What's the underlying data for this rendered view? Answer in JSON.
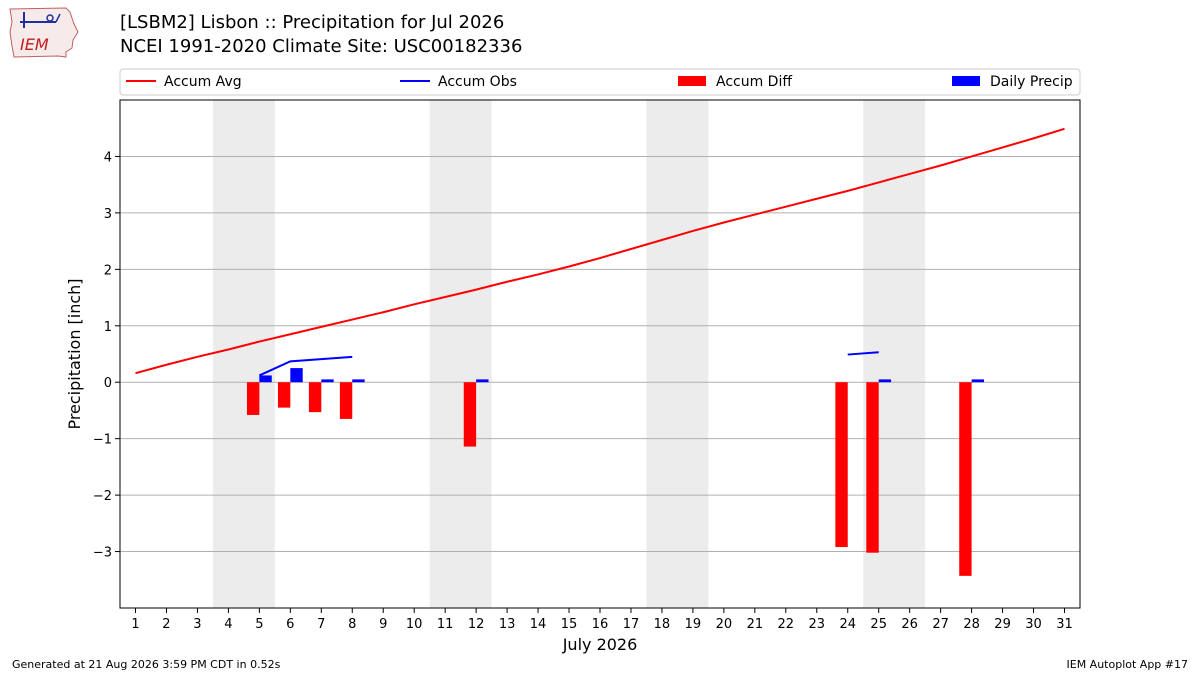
{
  "title": "[LSBM2] Lisbon :: Precipitation for Jul 2026",
  "subtitle": "NCEI 1991-2020 Climate Site: USC00182336",
  "logo_text": "IEM",
  "footer_left": "Generated at 21 Aug 2026 3:59 PM CDT in 0.52s",
  "footer_right": "IEM Autoplot App #17",
  "chart_data": {
    "type": "bar",
    "xlabel": "July 2026",
    "ylabel": "Precipitation [inch]",
    "x_ticks": [
      "1",
      "2",
      "3",
      "4",
      "5",
      "6",
      "7",
      "8",
      "9",
      "10",
      "11",
      "12",
      "13",
      "14",
      "15",
      "16",
      "17",
      "18",
      "19",
      "20",
      "21",
      "22",
      "23",
      "24",
      "25",
      "26",
      "27",
      "28",
      "29",
      "30",
      "31"
    ],
    "xlim": [
      0.5,
      31.5
    ],
    "ylim": [
      -4.0,
      5.0
    ],
    "y_ticks": [
      -3,
      -2,
      -1,
      0,
      1,
      2,
      3,
      4
    ],
    "y_tick_labels": [
      "−3",
      "−2",
      "−1",
      "0",
      "1",
      "2",
      "3",
      "4"
    ],
    "grid": "horizontal",
    "weekend_bands": [
      [
        3.5,
        5.5
      ],
      [
        10.5,
        12.5
      ],
      [
        17.5,
        19.5
      ],
      [
        24.5,
        26.5
      ]
    ],
    "legend_position": "top",
    "series": [
      {
        "name": "Accum Avg",
        "kind": "line",
        "color": "#ff0000",
        "x": [
          1,
          2,
          3,
          4,
          5,
          6,
          7,
          8,
          9,
          10,
          11,
          12,
          13,
          14,
          15,
          16,
          17,
          18,
          19,
          20,
          21,
          22,
          23,
          24,
          25,
          26,
          27,
          28,
          29,
          30,
          31
        ],
        "values": [
          0.16,
          0.31,
          0.45,
          0.58,
          0.72,
          0.85,
          0.98,
          1.11,
          1.24,
          1.38,
          1.51,
          1.64,
          1.78,
          1.91,
          2.05,
          2.2,
          2.36,
          2.52,
          2.68,
          2.83,
          2.97,
          3.11,
          3.25,
          3.39,
          3.54,
          3.69,
          3.84,
          4.0,
          4.16,
          4.32,
          4.49
        ]
      },
      {
        "name": "Accum Obs",
        "kind": "line",
        "color": "#0000ff",
        "segments": [
          {
            "x": [
              5,
              6,
              7,
              8
            ],
            "values": [
              0.12,
              0.37,
              0.41,
              0.45
            ]
          },
          {
            "x": [
              24,
              25
            ],
            "values": [
              0.49,
              0.53
            ]
          }
        ]
      },
      {
        "name": "Accum Diff",
        "kind": "bar",
        "color": "#ff0000",
        "x": [
          5,
          6,
          7,
          8,
          12,
          24,
          25,
          28
        ],
        "values": [
          -0.58,
          -0.45,
          -0.53,
          -0.65,
          -1.14,
          -2.92,
          -3.02,
          -3.43
        ]
      },
      {
        "name": "Daily Precip",
        "kind": "bar",
        "color": "#0000ff",
        "x": [
          5,
          6,
          7,
          8,
          12,
          25,
          28
        ],
        "values": [
          0.12,
          0.25,
          0.05,
          0.05,
          0.05,
          0.05,
          0.05
        ]
      }
    ]
  }
}
